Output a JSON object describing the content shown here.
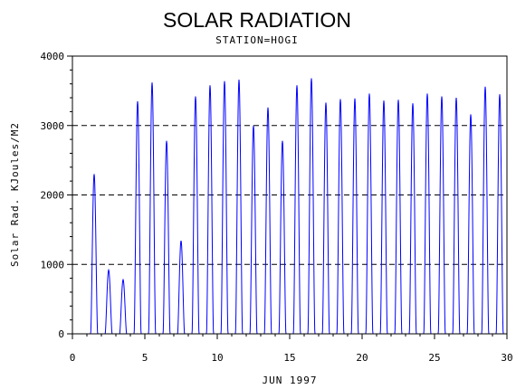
{
  "chart_data": {
    "type": "line",
    "title": "SOLAR RADIATION",
    "subtitle": "STATION=HOGI",
    "xlabel": "JUN 1997",
    "ylabel": "Solar Rad. KJoules/M2",
    "xlim": [
      0,
      30
    ],
    "ylim": [
      0,
      4000
    ],
    "x_ticks": [
      0,
      5,
      10,
      15,
      20,
      25,
      30
    ],
    "y_ticks": [
      0,
      1000,
      2000,
      3000,
      4000
    ],
    "grid": "horizontal dashed at 1000, 2000, 3000, 4000",
    "series_color": "#0000ff",
    "daily_peaks": [
      {
        "day": 1,
        "peak": 2300
      },
      {
        "day": 2,
        "peak": 920
      },
      {
        "day": 3,
        "peak": 780
      },
      {
        "day": 4,
        "peak": 3350
      },
      {
        "day": 5,
        "peak": 3620
      },
      {
        "day": 6,
        "peak": 2780
      },
      {
        "day": 7,
        "peak": 1340
      },
      {
        "day": 8,
        "peak": 3420
      },
      {
        "day": 9,
        "peak": 3580
      },
      {
        "day": 10,
        "peak": 3640
      },
      {
        "day": 11,
        "peak": 3660
      },
      {
        "day": 12,
        "peak": 3000
      },
      {
        "day": 13,
        "peak": 3260
      },
      {
        "day": 14,
        "peak": 2780
      },
      {
        "day": 15,
        "peak": 3580
      },
      {
        "day": 16,
        "peak": 3680
      },
      {
        "day": 17,
        "peak": 3330
      },
      {
        "day": 18,
        "peak": 3380
      },
      {
        "day": 19,
        "peak": 3390
      },
      {
        "day": 20,
        "peak": 3460
      },
      {
        "day": 21,
        "peak": 3360
      },
      {
        "day": 22,
        "peak": 3370
      },
      {
        "day": 23,
        "peak": 3320
      },
      {
        "day": 24,
        "peak": 3460
      },
      {
        "day": 25,
        "peak": 3420
      },
      {
        "day": 26,
        "peak": 3400
      },
      {
        "day": 27,
        "peak": 3160
      },
      {
        "day": 28,
        "peak": 3560
      },
      {
        "day": 29,
        "peak": 3450
      }
    ]
  }
}
